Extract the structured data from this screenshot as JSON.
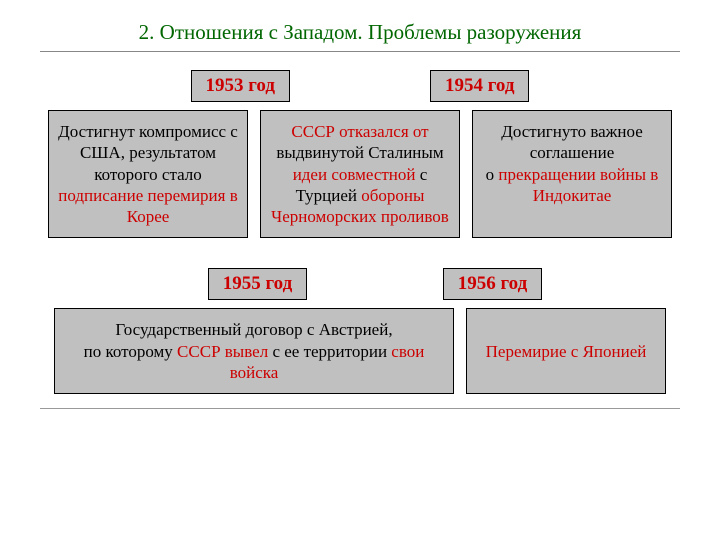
{
  "colors": {
    "background": "#ffffff",
    "box_bg": "#c0c0c0",
    "box_border": "#000000",
    "title_color": "#006600",
    "highlight_red": "#cc0000",
    "text_black": "#000000",
    "rule_color": "#888888"
  },
  "typography": {
    "font_family": "Georgia, 'Times New Roman', serif",
    "title_fontsize": 21,
    "year_fontsize": 19,
    "box_fontsize": 17
  },
  "title": "2. Отношения с Западом. Проблемы разоружения",
  "years": {
    "y1953": "1953 год",
    "y1954": "1954 год",
    "y1955": "1955 год",
    "y1956": "1956 год"
  },
  "box1": {
    "p1": "Достигнут компромисс с США, результатом которого стало ",
    "p2": "подписание перемирия в Корее"
  },
  "box2": {
    "p1": "СССР отказался от ",
    "p2": "выдвинутой Сталиным ",
    "p3": "идеи совместной ",
    "p4": "с Турцией ",
    "p5": "обороны Черноморских проливов"
  },
  "box3": {
    "p1": "Достигнуто важное соглашение",
    "p2": "о ",
    "p3": "прекращении войны в Индокитае"
  },
  "box4": {
    "p1": "Государственный договор с Австрией,",
    "p2": "по которому ",
    "p3": "СССР вывел ",
    "p4": "с ее территории ",
    "p5": "свои войска"
  },
  "box5": {
    "p1": "Перемирие с Японией"
  }
}
